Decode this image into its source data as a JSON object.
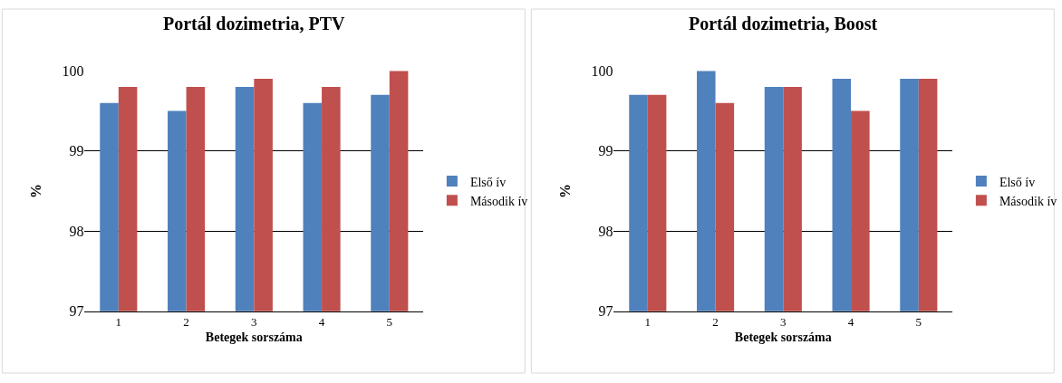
{
  "chart_data": [
    {
      "type": "bar",
      "title": "Portál dozimetria, PTV",
      "xlabel": "Betegek sorszáma",
      "ylabel": "%",
      "categories": [
        "1",
        "2",
        "3",
        "4",
        "5"
      ],
      "series": [
        {
          "name": "Első ív",
          "color": "#4f81bd",
          "values": [
            99.6,
            99.5,
            99.8,
            99.6,
            99.7
          ]
        },
        {
          "name": "Második ív",
          "color": "#c0504d",
          "values": [
            99.8,
            99.8,
            99.9,
            99.8,
            100.0
          ]
        }
      ],
      "ylim": [
        97,
        100
      ],
      "yticks": [
        97,
        98,
        99,
        100
      ],
      "grid": "y",
      "legend": "right"
    },
    {
      "type": "bar",
      "title": "Portál dozimetria, Boost",
      "xlabel": "Betegek sorszáma",
      "ylabel": "%",
      "categories": [
        "1",
        "2",
        "3",
        "4",
        "5"
      ],
      "series": [
        {
          "name": "Első ív",
          "color": "#4f81bd",
          "values": [
            99.7,
            100.0,
            99.8,
            99.9,
            99.9
          ]
        },
        {
          "name": "Második ív",
          "color": "#c0504d",
          "values": [
            99.7,
            99.6,
            99.8,
            99.5,
            99.9
          ]
        }
      ],
      "ylim": [
        97,
        100
      ],
      "yticks": [
        97,
        98,
        99,
        100
      ],
      "grid": "y",
      "legend": "right"
    }
  ]
}
